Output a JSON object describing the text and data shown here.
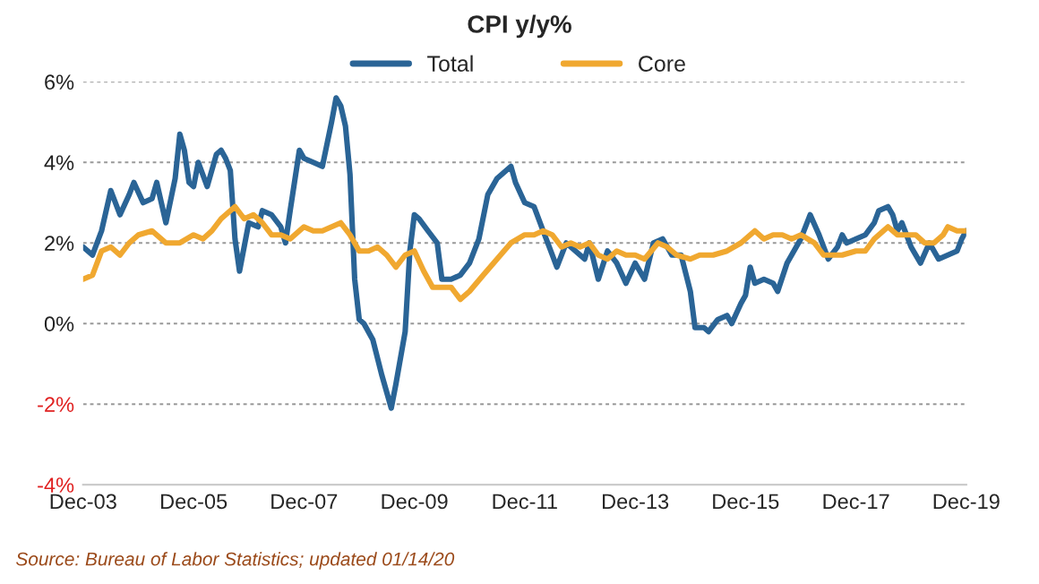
{
  "chart_data": {
    "type": "line",
    "title": "CPI y/y%",
    "x": [
      "2003-12",
      "2004-02",
      "2004-04",
      "2004-06",
      "2004-08",
      "2004-10",
      "2004-11",
      "2005-01",
      "2005-03",
      "2005-04",
      "2005-06",
      "2005-08",
      "2005-09",
      "2005-10",
      "2005-11",
      "2005-12",
      "2006-01",
      "2006-03",
      "2006-05",
      "2006-06",
      "2006-07",
      "2006-08",
      "2006-09",
      "2006-10",
      "2006-12",
      "2007-02",
      "2007-03",
      "2007-05",
      "2007-07",
      "2007-08",
      "2007-09",
      "2007-11",
      "2007-12",
      "2008-02",
      "2008-04",
      "2008-06",
      "2008-07",
      "2008-08",
      "2008-09",
      "2008-10",
      "2008-11",
      "2008-12",
      "2009-01",
      "2009-03",
      "2009-05",
      "2009-07",
      "2009-08",
      "2009-10",
      "2009-11",
      "2009-12",
      "2010-01",
      "2010-03",
      "2010-05",
      "2010-06",
      "2010-08",
      "2010-10",
      "2010-12",
      "2011-02",
      "2011-04",
      "2011-06",
      "2011-09",
      "2011-10",
      "2011-12",
      "2012-02",
      "2012-04",
      "2012-06",
      "2012-07",
      "2012-09",
      "2012-11",
      "2013-01",
      "2013-02",
      "2013-04",
      "2013-06",
      "2013-08",
      "2013-10",
      "2013-12",
      "2014-02",
      "2014-04",
      "2014-06",
      "2014-08",
      "2014-10",
      "2014-12",
      "2015-01",
      "2015-03",
      "2015-04",
      "2015-06",
      "2015-08",
      "2015-09",
      "2015-11",
      "2015-12",
      "2016-01",
      "2016-02",
      "2016-04",
      "2016-06",
      "2016-07",
      "2016-09",
      "2016-12",
      "2017-02",
      "2017-04",
      "2017-06",
      "2017-08",
      "2017-09",
      "2017-10",
      "2017-12",
      "2018-02",
      "2018-04",
      "2018-05",
      "2018-07",
      "2018-08",
      "2018-09",
      "2018-10",
      "2018-12",
      "2019-02",
      "2019-04",
      "2019-06",
      "2019-08",
      "2019-10",
      "2019-11",
      "2019-12"
    ],
    "series": [
      {
        "name": "Total",
        "color": "#2a6496",
        "values": [
          1.9,
          1.7,
          2.3,
          3.3,
          2.7,
          3.2,
          3.5,
          3.0,
          3.1,
          3.5,
          2.5,
          3.6,
          4.7,
          4.3,
          3.5,
          3.4,
          4.0,
          3.4,
          4.2,
          4.3,
          4.1,
          3.8,
          2.1,
          1.3,
          2.5,
          2.4,
          2.8,
          2.7,
          2.4,
          2.0,
          2.8,
          4.3,
          4.1,
          4.0,
          3.9,
          5.0,
          5.6,
          5.4,
          4.9,
          3.7,
          1.1,
          0.1,
          0.0,
          -0.4,
          -1.3,
          -2.1,
          -1.5,
          -0.2,
          1.8,
          2.7,
          2.6,
          2.3,
          2.0,
          1.1,
          1.1,
          1.2,
          1.5,
          2.1,
          3.2,
          3.6,
          3.9,
          3.5,
          3.0,
          2.9,
          2.3,
          1.7,
          1.4,
          2.0,
          1.8,
          1.6,
          2.0,
          1.1,
          1.8,
          1.5,
          1.0,
          1.5,
          1.1,
          2.0,
          2.1,
          1.7,
          1.7,
          0.8,
          -0.1,
          -0.1,
          -0.2,
          0.1,
          0.2,
          0.0,
          0.5,
          0.7,
          1.4,
          1.0,
          1.1,
          1.0,
          0.8,
          1.5,
          2.1,
          2.7,
          2.2,
          1.6,
          1.9,
          2.2,
          2.0,
          2.1,
          2.2,
          2.5,
          2.8,
          2.9,
          2.7,
          2.3,
          2.5,
          1.9,
          1.5,
          2.0,
          1.6,
          1.7,
          1.8,
          2.1,
          2.3
        ]
      },
      {
        "name": "Core",
        "color": "#f0a830",
        "x": [
          "2003-12",
          "2004-02",
          "2004-04",
          "2004-06",
          "2004-08",
          "2004-10",
          "2004-12",
          "2005-03",
          "2005-06",
          "2005-09",
          "2005-12",
          "2006-02",
          "2006-04",
          "2006-06",
          "2006-09",
          "2006-11",
          "2007-01",
          "2007-03",
          "2007-05",
          "2007-07",
          "2007-09",
          "2007-12",
          "2008-02",
          "2008-04",
          "2008-06",
          "2008-08",
          "2008-10",
          "2008-12",
          "2009-02",
          "2009-04",
          "2009-06",
          "2009-08",
          "2009-10",
          "2009-12",
          "2010-02",
          "2010-04",
          "2010-06",
          "2010-08",
          "2010-10",
          "2010-12",
          "2011-03",
          "2011-06",
          "2011-09",
          "2011-12",
          "2012-02",
          "2012-04",
          "2012-06",
          "2012-08",
          "2012-10",
          "2012-12",
          "2013-02",
          "2013-04",
          "2013-06",
          "2013-08",
          "2013-10",
          "2013-12",
          "2014-02",
          "2014-05",
          "2014-07",
          "2014-09",
          "2014-12",
          "2015-02",
          "2015-05",
          "2015-08",
          "2015-11",
          "2016-02",
          "2016-04",
          "2016-06",
          "2016-08",
          "2016-10",
          "2016-12",
          "2017-03",
          "2017-05",
          "2017-07",
          "2017-09",
          "2017-12",
          "2018-02",
          "2018-04",
          "2018-07",
          "2018-09",
          "2018-11",
          "2019-01",
          "2019-03",
          "2019-05",
          "2019-07",
          "2019-08",
          "2019-10",
          "2019-12"
        ],
        "values": [
          1.1,
          1.2,
          1.8,
          1.9,
          1.7,
          2.0,
          2.2,
          2.3,
          2.0,
          2.0,
          2.2,
          2.1,
          2.3,
          2.6,
          2.9,
          2.6,
          2.7,
          2.5,
          2.2,
          2.2,
          2.1,
          2.4,
          2.3,
          2.3,
          2.4,
          2.5,
          2.2,
          1.8,
          1.8,
          1.9,
          1.7,
          1.4,
          1.7,
          1.8,
          1.3,
          0.9,
          0.9,
          0.9,
          0.6,
          0.8,
          1.2,
          1.6,
          2.0,
          2.2,
          2.2,
          2.3,
          2.2,
          1.9,
          2.0,
          1.9,
          2.0,
          1.7,
          1.6,
          1.8,
          1.7,
          1.7,
          1.6,
          2.0,
          1.9,
          1.7,
          1.6,
          1.7,
          1.7,
          1.8,
          2.0,
          2.3,
          2.1,
          2.2,
          2.2,
          2.1,
          2.2,
          2.0,
          1.7,
          1.7,
          1.7,
          1.8,
          1.8,
          2.1,
          2.4,
          2.2,
          2.2,
          2.2,
          2.0,
          2.0,
          2.2,
          2.4,
          2.3,
          2.3
        ]
      }
    ],
    "xlim": [
      "2003-12",
      "2019-12"
    ],
    "xticks": [
      {
        "value": "2003-12",
        "label": "Dec-03"
      },
      {
        "value": "2005-12",
        "label": "Dec-05"
      },
      {
        "value": "2007-12",
        "label": "Dec-07"
      },
      {
        "value": "2009-12",
        "label": "Dec-09"
      },
      {
        "value": "2011-12",
        "label": "Dec-11"
      },
      {
        "value": "2013-12",
        "label": "Dec-13"
      },
      {
        "value": "2015-12",
        "label": "Dec-15"
      },
      {
        "value": "2017-12",
        "label": "Dec-17"
      },
      {
        "value": "2019-12",
        "label": "Dec-19"
      }
    ],
    "ylim": [
      -4,
      6
    ],
    "yticks": [
      {
        "value": -4,
        "label": "-4%"
      },
      {
        "value": -2,
        "label": "-2%"
      },
      {
        "value": 0,
        "label": "0%"
      },
      {
        "value": 2,
        "label": "2%"
      },
      {
        "value": 4,
        "label": "4%"
      },
      {
        "value": 6,
        "label": "6%"
      }
    ],
    "grid": "y",
    "legend": "top",
    "marker": "none",
    "line_style": "solid",
    "annotations": [
      "Source: Bureau of Labor Statistics; updated 01/14/20"
    ]
  }
}
